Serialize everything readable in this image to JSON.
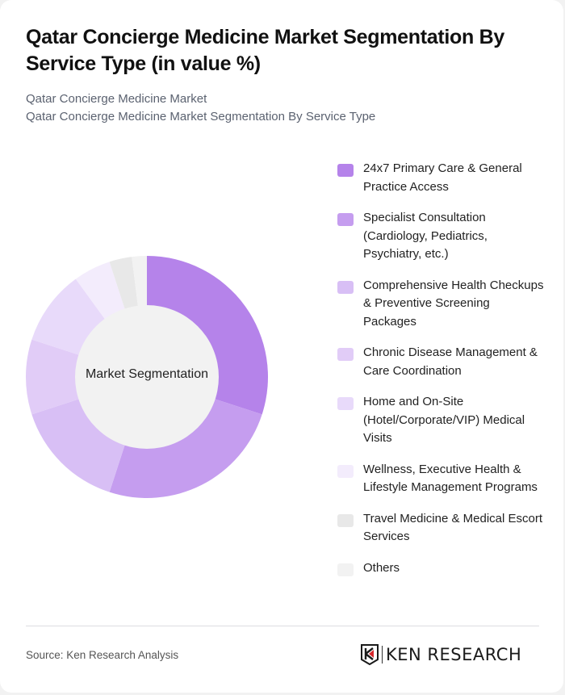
{
  "header": {
    "title": "Qatar Concierge Medicine Market Segmentation By Service Type (in value %)",
    "subtitle_line1": "Qatar Concierge Medicine Market",
    "subtitle_line2": "Qatar Concierge Medicine Market Segmentation By Service Type"
  },
  "chart_data": {
    "type": "pie",
    "variant": "donut",
    "title": "Qatar Concierge Medicine Market Segmentation By Service Type (in value %)",
    "center_label": "Market Segmentation",
    "categories": [
      "24x7 Primary Care & General Practice Access",
      "Specialist Consultation (Cardiology, Pediatrics, Psychiatry, etc.)",
      "Comprehensive Health Checkups & Preventive Screening Packages",
      "Chronic Disease Management & Care Coordination",
      "Home and On-Site (Hotel/Corporate/VIP) Medical Visits",
      "Wellness, Executive Health & Lifestyle Management Programs",
      "Travel Medicine & Medical Escort Services",
      "Others"
    ],
    "values": [
      30,
      25,
      15,
      10,
      10,
      5,
      3,
      2
    ],
    "colors": [
      "#b583ea",
      "#c59def",
      "#d8bff5",
      "#e1ccf7",
      "#e8dafa",
      "#f3ecfc",
      "#e8e8e8",
      "#f2f2f2"
    ],
    "legend_position": "right",
    "start_angle": "top, clockwise"
  },
  "legend": {
    "items": [
      {
        "label": "24x7 Primary Care & General Practice Access",
        "color": "#b583ea"
      },
      {
        "label": "Specialist Consultation (Cardiology, Pediatrics, Psychiatry, etc.)",
        "color": "#c59def"
      },
      {
        "label": "Comprehensive Health Checkups & Preventive Screening Packages",
        "color": "#d8bff5"
      },
      {
        "label": "Chronic Disease Management & Care Coordination",
        "color": "#e1ccf7"
      },
      {
        "label": "Home and On-Site (Hotel/Corporate/VIP) Medical Visits",
        "color": "#e8dafa"
      },
      {
        "label": "Wellness, Executive Health & Lifestyle Management Programs",
        "color": "#f3ecfc"
      },
      {
        "label": "Travel Medicine & Medical Escort Services",
        "color": "#e8e8e8"
      },
      {
        "label": "Others",
        "color": "#f2f2f2"
      }
    ]
  },
  "footer": {
    "source": "Source: Ken Research Analysis",
    "logo_text": "KEN RESEARCH"
  }
}
